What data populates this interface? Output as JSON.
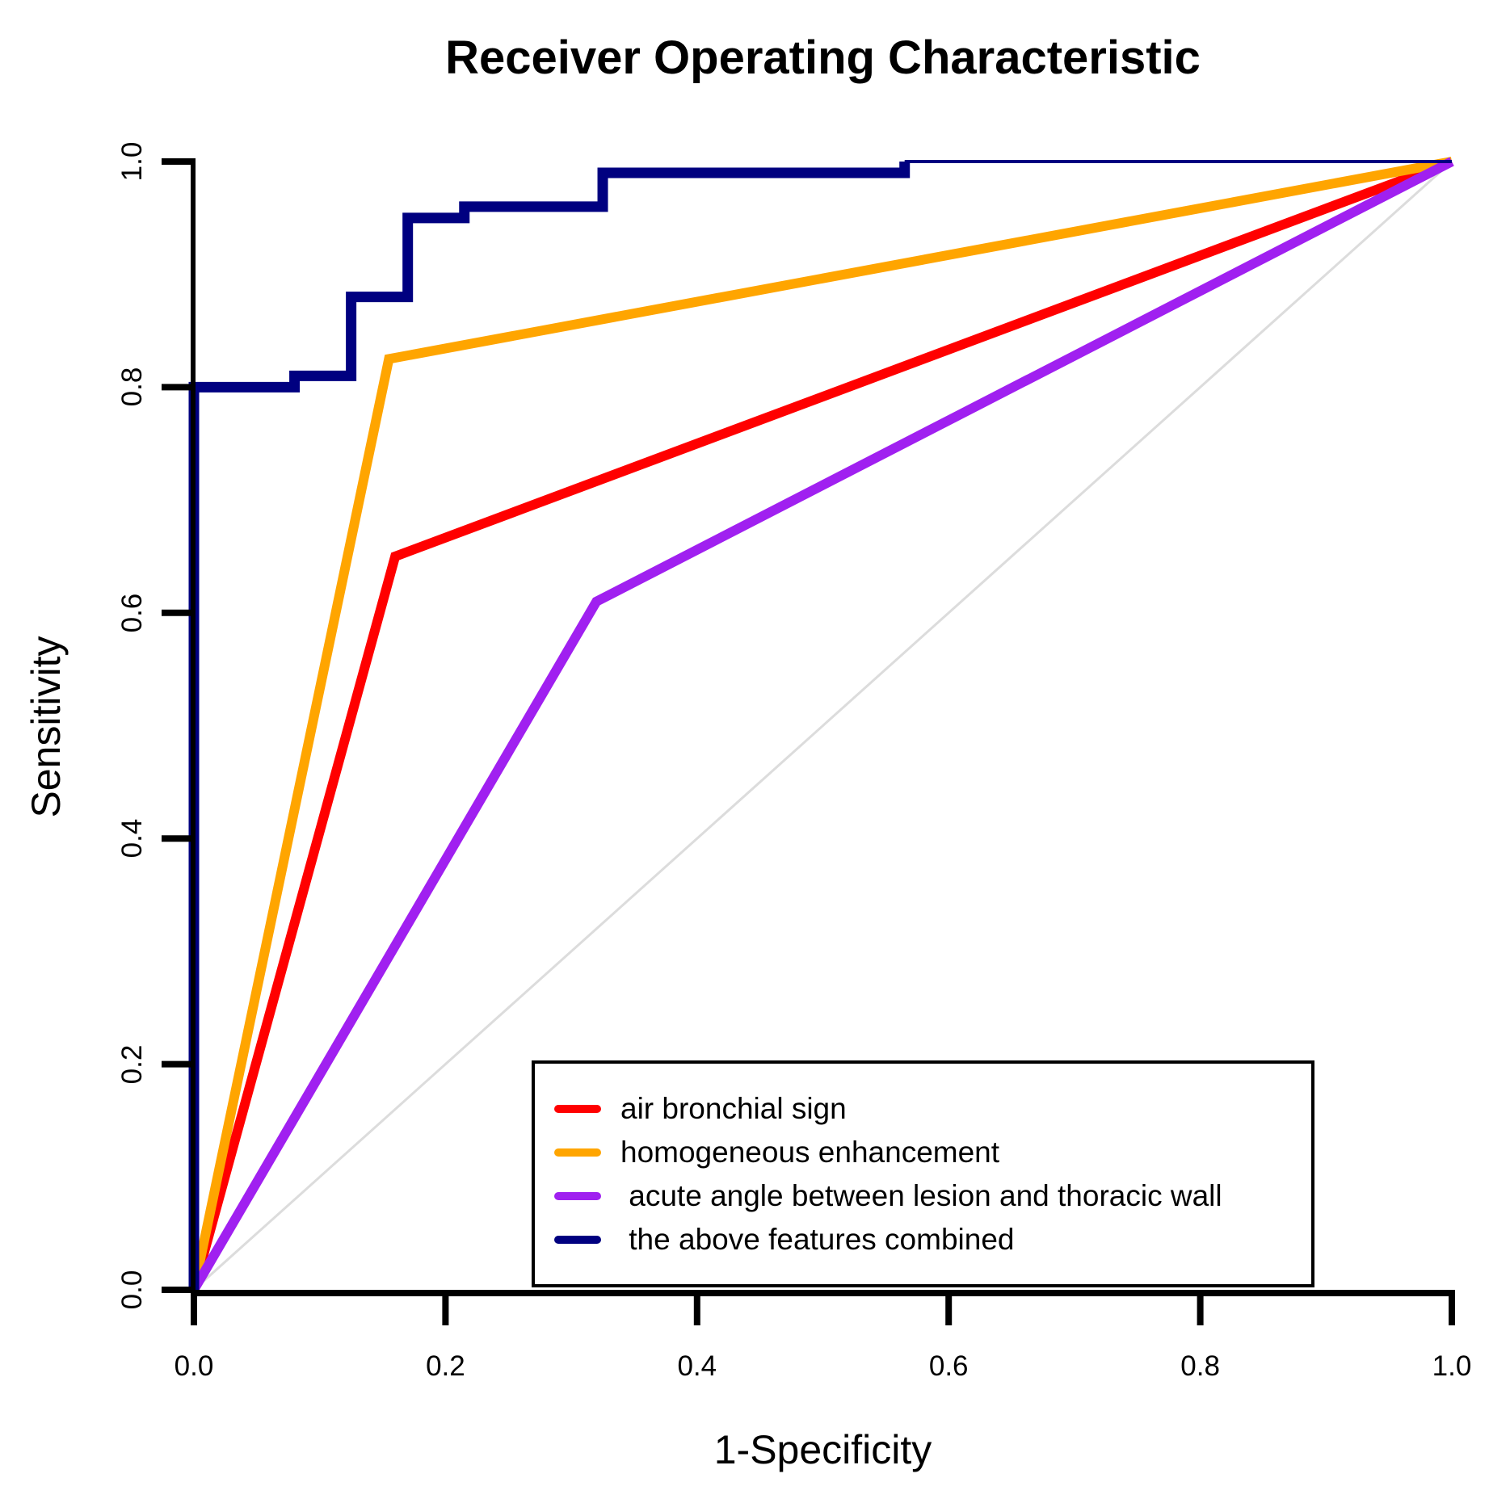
{
  "chart_data": {
    "type": "line",
    "title": "Receiver Operating Characteristic",
    "xlabel": "1-Specificity",
    "ylabel": "Sensitivity",
    "xlim": [
      0.0,
      1.0
    ],
    "ylim": [
      0.0,
      1.0
    ],
    "x_tick_labels": [
      "0.0",
      "0.2",
      "0.4",
      "0.6",
      "0.8",
      "1.0"
    ],
    "y_tick_labels": [
      "0.0",
      "0.2",
      "0.4",
      "0.6",
      "0.8",
      "1.0"
    ],
    "grid": false,
    "background_color": "#ffffff",
    "axis_color": "#000000",
    "reference_line": {
      "name": "chance diagonal",
      "color": "#dcdcdc",
      "points": [
        [
          0,
          0
        ],
        [
          1,
          1
        ]
      ]
    },
    "series": [
      {
        "name": "air bronchial sign",
        "color": "#ff0000",
        "points": [
          [
            0,
            0
          ],
          [
            0.16,
            0.65
          ],
          [
            1,
            1
          ]
        ]
      },
      {
        "name": "homogeneous enhancement",
        "color": "#ffa500",
        "points": [
          [
            0,
            0
          ],
          [
            0.155,
            0.825
          ],
          [
            1,
            1
          ]
        ]
      },
      {
        "name": "acute angle between lesion and thoracic wall",
        "color": "#a020f0",
        "points": [
          [
            0,
            0
          ],
          [
            0.32,
            0.61
          ],
          [
            1,
            1
          ]
        ]
      },
      {
        "name": "the above features combined",
        "color": "#000080",
        "tail_thin": true,
        "points": [
          [
            0,
            0
          ],
          [
            0,
            0.8
          ],
          [
            0.08,
            0.8
          ],
          [
            0.08,
            0.81
          ],
          [
            0.125,
            0.81
          ],
          [
            0.125,
            0.88
          ],
          [
            0.17,
            0.88
          ],
          [
            0.17,
            0.95
          ],
          [
            0.215,
            0.95
          ],
          [
            0.215,
            0.96
          ],
          [
            0.325,
            0.96
          ],
          [
            0.325,
            0.99
          ],
          [
            0.565,
            0.99
          ],
          [
            0.565,
            1.0
          ],
          [
            1,
            1
          ]
        ]
      }
    ],
    "legend": {
      "position": "bottom-right",
      "border_color": "#000000",
      "labels": [
        "air bronchial sign",
        "homogeneous enhancement",
        " acute angle between lesion and thoracic wall",
        " the above features combined"
      ]
    }
  }
}
